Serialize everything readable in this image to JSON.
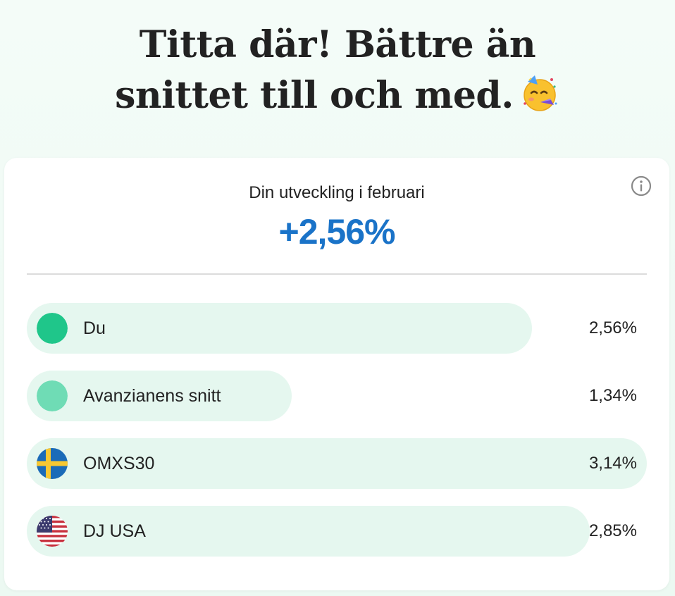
{
  "headline": {
    "line1": "Titta där! Bättre än",
    "line2": "snittet till och med.",
    "emoji_icon": "partying-face-emoji"
  },
  "card": {
    "period_label": "Din utveckling i februari",
    "total_value": "+2,56%",
    "total_color": "#1a73c8",
    "info_icon": "info-icon"
  },
  "comparison": [
    {
      "label": "Du",
      "value_text": "2,56%",
      "value": 2.56,
      "icon": "green-dot",
      "color": "#1fc68a"
    },
    {
      "label": "Avanzianens snitt",
      "value_text": "1,34%",
      "value": 1.34,
      "icon": "light-green-dot",
      "color": "#6fdcb5"
    },
    {
      "label": "OMXS30",
      "value_text": "3,14%",
      "value": 3.14,
      "icon": "sweden-flag-icon"
    },
    {
      "label": "DJ USA",
      "value_text": "2,85%",
      "value": 2.85,
      "icon": "usa-flag-icon"
    }
  ],
  "colors": {
    "bar_background": "#e5f7ef",
    "page_background": "#eefaf4"
  }
}
